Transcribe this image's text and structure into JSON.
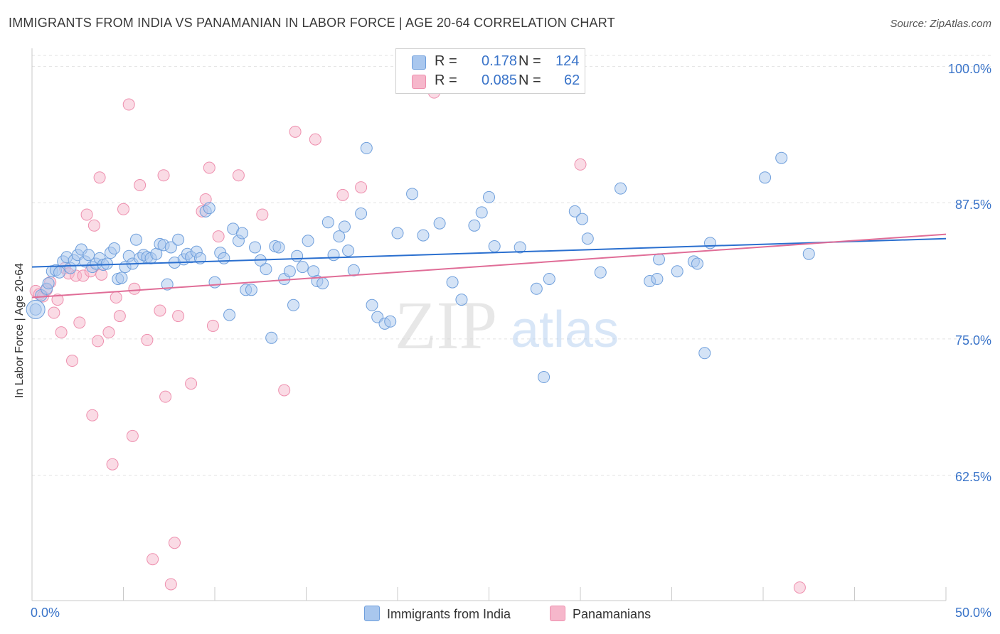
{
  "title": "IMMIGRANTS FROM INDIA VS PANAMANIAN IN LABOR FORCE | AGE 20-64 CORRELATION CHART",
  "source": "Source: ZipAtlas.com",
  "watermark": "ZIPatlas",
  "colors": {
    "blue_fill": "#a9c7ee",
    "blue_stroke": "#6f9fdc",
    "blue_line": "#2a6fcf",
    "pink_fill": "#f6b7cb",
    "pink_stroke": "#ee8fae",
    "pink_line": "#e06d97",
    "axis_text": "#3a74c9",
    "grid": "#e2e2e2"
  },
  "legend": {
    "rows": [
      {
        "r_label": "R =",
        "r_value": "0.178",
        "n_label": "N =",
        "n_value": "124"
      },
      {
        "r_label": "R =",
        "r_value": "0.085",
        "n_label": "N =",
        "n_value": "62"
      }
    ]
  },
  "bottom_legend": {
    "india": "Immigrants from India",
    "panama": "Panamanians"
  },
  "axes": {
    "ylabel": "In Labor Force | Age 20-64",
    "x_tick_left": "0.0%",
    "x_tick_right": "50.0%",
    "y_ticks": [
      "100.0%",
      "87.5%",
      "75.0%",
      "62.5%"
    ]
  },
  "chart_data": {
    "type": "scatter",
    "title": "IMMIGRANTS FROM INDIA VS PANAMANIAN IN LABOR FORCE | AGE 20-64 CORRELATION CHART",
    "xlabel": "",
    "ylabel": "In Labor Force | Age 20-64",
    "xlim": [
      0,
      50
    ],
    "ylim": [
      51,
      101
    ],
    "y_ticks": [
      100,
      87.5,
      75,
      62.5
    ],
    "grid": true,
    "legend_position": "top-center",
    "series": [
      {
        "name": "Immigrants from India",
        "R": 0.178,
        "N": 124,
        "trend": {
          "x": [
            0,
            50
          ],
          "y": [
            81.6,
            84.2
          ]
        },
        "points": [
          [
            0.2,
            77.7
          ],
          [
            0.5,
            79.0
          ],
          [
            0.8,
            79.6
          ],
          [
            0.9,
            80.1
          ],
          [
            1.1,
            81.2
          ],
          [
            1.3,
            81.3
          ],
          [
            1.5,
            81.1
          ],
          [
            1.7,
            82.1
          ],
          [
            1.9,
            82.5
          ],
          [
            2.1,
            81.5
          ],
          [
            2.3,
            82.2
          ],
          [
            2.5,
            82.7
          ],
          [
            2.7,
            83.2
          ],
          [
            2.9,
            82.1
          ],
          [
            3.1,
            82.7
          ],
          [
            3.3,
            81.6
          ],
          [
            3.5,
            81.9
          ],
          [
            3.7,
            82.4
          ],
          [
            3.9,
            81.8
          ],
          [
            4.1,
            81.9
          ],
          [
            4.3,
            82.9
          ],
          [
            4.5,
            83.3
          ],
          [
            4.7,
            80.5
          ],
          [
            4.9,
            80.6
          ],
          [
            5.1,
            81.6
          ],
          [
            5.3,
            82.6
          ],
          [
            5.5,
            81.9
          ],
          [
            5.7,
            84.1
          ],
          [
            5.9,
            82.4
          ],
          [
            6.1,
            82.7
          ],
          [
            6.3,
            82.5
          ],
          [
            6.5,
            82.4
          ],
          [
            6.8,
            82.8
          ],
          [
            7.0,
            83.7
          ],
          [
            7.2,
            83.6
          ],
          [
            7.4,
            80.0
          ],
          [
            7.6,
            83.4
          ],
          [
            7.8,
            82.0
          ],
          [
            8.0,
            84.1
          ],
          [
            8.3,
            82.3
          ],
          [
            8.5,
            82.8
          ],
          [
            8.7,
            82.5
          ],
          [
            9.0,
            83.0
          ],
          [
            9.2,
            82.4
          ],
          [
            9.5,
            86.7
          ],
          [
            9.7,
            87.0
          ],
          [
            10.0,
            80.2
          ],
          [
            10.3,
            82.9
          ],
          [
            10.5,
            82.4
          ],
          [
            10.8,
            77.2
          ],
          [
            11.0,
            85.1
          ],
          [
            11.3,
            84.0
          ],
          [
            11.5,
            84.7
          ],
          [
            11.7,
            79.5
          ],
          [
            12.0,
            79.5
          ],
          [
            12.2,
            83.4
          ],
          [
            12.5,
            82.2
          ],
          [
            12.8,
            81.4
          ],
          [
            13.1,
            75.1
          ],
          [
            13.3,
            83.5
          ],
          [
            13.5,
            83.4
          ],
          [
            13.8,
            80.5
          ],
          [
            14.1,
            81.2
          ],
          [
            14.3,
            78.1
          ],
          [
            14.5,
            82.6
          ],
          [
            14.8,
            81.6
          ],
          [
            15.1,
            84.0
          ],
          [
            15.4,
            81.2
          ],
          [
            15.6,
            80.3
          ],
          [
            15.9,
            80.1
          ],
          [
            16.2,
            85.7
          ],
          [
            16.5,
            82.7
          ],
          [
            16.8,
            84.4
          ],
          [
            17.1,
            85.3
          ],
          [
            17.3,
            83.1
          ],
          [
            17.6,
            81.3
          ],
          [
            18.0,
            86.5
          ],
          [
            18.3,
            92.5
          ],
          [
            18.6,
            78.1
          ],
          [
            18.9,
            77.0
          ],
          [
            19.3,
            76.4
          ],
          [
            19.6,
            76.6
          ],
          [
            20.0,
            84.7
          ],
          [
            20.8,
            88.3
          ],
          [
            21.4,
            84.5
          ],
          [
            22.3,
            85.6
          ],
          [
            23.0,
            80.2
          ],
          [
            23.5,
            78.6
          ],
          [
            24.2,
            85.4
          ],
          [
            24.6,
            86.6
          ],
          [
            25.0,
            88.0
          ],
          [
            25.3,
            83.5
          ],
          [
            26.7,
            83.4
          ],
          [
            27.6,
            79.6
          ],
          [
            28.0,
            71.5
          ],
          [
            28.3,
            80.5
          ],
          [
            29.7,
            86.7
          ],
          [
            30.1,
            86.0
          ],
          [
            30.4,
            84.2
          ],
          [
            31.1,
            81.1
          ],
          [
            32.2,
            88.8
          ],
          [
            33.8,
            80.3
          ],
          [
            34.2,
            80.5
          ],
          [
            34.3,
            82.3
          ],
          [
            35.3,
            81.2
          ],
          [
            36.2,
            82.1
          ],
          [
            36.4,
            81.9
          ],
          [
            36.8,
            73.7
          ],
          [
            37.1,
            83.8
          ],
          [
            40.1,
            89.8
          ],
          [
            41.0,
            91.6
          ],
          [
            42.5,
            82.8
          ]
        ]
      },
      {
        "name": "Panamanians",
        "R": 0.085,
        "N": 62,
        "trend": {
          "x": [
            0,
            50
          ],
          "y": [
            78.8,
            84.6
          ]
        },
        "points": [
          [
            0.2,
            79.4
          ],
          [
            0.4,
            79.1
          ],
          [
            0.6,
            78.9
          ],
          [
            0.8,
            79.5
          ],
          [
            1.0,
            80.2
          ],
          [
            1.2,
            77.4
          ],
          [
            1.4,
            78.6
          ],
          [
            1.6,
            75.6
          ],
          [
            1.8,
            81.5
          ],
          [
            2.0,
            81.0
          ],
          [
            2.2,
            73.0
          ],
          [
            2.4,
            80.8
          ],
          [
            2.6,
            76.5
          ],
          [
            2.8,
            80.8
          ],
          [
            3.0,
            86.4
          ],
          [
            3.2,
            81.2
          ],
          [
            3.3,
            68.0
          ],
          [
            3.4,
            85.4
          ],
          [
            3.6,
            74.8
          ],
          [
            3.7,
            89.8
          ],
          [
            3.8,
            80.9
          ],
          [
            4.2,
            75.6
          ],
          [
            4.4,
            63.5
          ],
          [
            4.6,
            78.8
          ],
          [
            4.8,
            77.1
          ],
          [
            5.0,
            86.9
          ],
          [
            5.3,
            96.5
          ],
          [
            5.5,
            66.1
          ],
          [
            5.6,
            79.6
          ],
          [
            5.9,
            89.1
          ],
          [
            6.3,
            74.9
          ],
          [
            6.6,
            54.8
          ],
          [
            7.0,
            77.6
          ],
          [
            7.2,
            90.0
          ],
          [
            7.3,
            69.7
          ],
          [
            7.6,
            52.5
          ],
          [
            7.8,
            56.3
          ],
          [
            8.0,
            77.1
          ],
          [
            8.7,
            70.9
          ],
          [
            9.3,
            86.7
          ],
          [
            9.5,
            87.8
          ],
          [
            9.7,
            90.7
          ],
          [
            9.9,
            76.2
          ],
          [
            10.2,
            84.4
          ],
          [
            11.3,
            90.0
          ],
          [
            12.6,
            86.4
          ],
          [
            13.8,
            70.3
          ],
          [
            14.4,
            94.0
          ],
          [
            15.5,
            93.3
          ],
          [
            17.0,
            88.2
          ],
          [
            18.0,
            88.9
          ],
          [
            22.0,
            97.6
          ],
          [
            30.0,
            91.0
          ],
          [
            42.0,
            52.2
          ]
        ]
      }
    ]
  }
}
